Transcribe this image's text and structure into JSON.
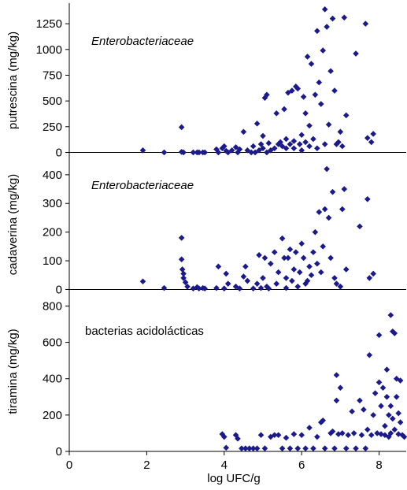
{
  "chart_data": {
    "type": "scatter",
    "marker_color": "#1a1a8c",
    "xlabel": "log UFC/g",
    "xlim": [
      0,
      8.7
    ],
    "xticks": [
      0,
      2,
      4,
      6,
      8
    ],
    "panels": [
      {
        "ylabel": "putrescina (mg/kg)",
        "annotation": "Enterobacteriaceae",
        "annotation_italic": true,
        "ylim": [
          -50,
          1450
        ],
        "yticks": [
          0,
          250,
          500,
          750,
          1000,
          1250
        ],
        "points": [
          [
            1.9,
            20
          ],
          [
            2.45,
            0
          ],
          [
            2.9,
            245
          ],
          [
            2.9,
            5
          ],
          [
            2.95,
            0
          ],
          [
            3.2,
            0
          ],
          [
            3.3,
            0
          ],
          [
            3.35,
            0
          ],
          [
            3.45,
            0
          ],
          [
            3.5,
            0
          ],
          [
            3.8,
            30
          ],
          [
            3.85,
            0
          ],
          [
            3.95,
            40
          ],
          [
            4.0,
            60
          ],
          [
            4.05,
            15
          ],
          [
            4.1,
            0
          ],
          [
            4.2,
            20
          ],
          [
            4.3,
            50
          ],
          [
            4.35,
            0
          ],
          [
            4.4,
            30
          ],
          [
            4.5,
            200
          ],
          [
            4.6,
            20
          ],
          [
            4.7,
            0
          ],
          [
            4.75,
            60
          ],
          [
            4.8,
            0
          ],
          [
            4.85,
            280
          ],
          [
            4.9,
            20
          ],
          [
            4.95,
            80
          ],
          [
            5.0,
            160
          ],
          [
            5.0,
            40
          ],
          [
            5.05,
            530
          ],
          [
            5.1,
            560
          ],
          [
            5.1,
            0
          ],
          [
            5.15,
            90
          ],
          [
            5.2,
            20
          ],
          [
            5.3,
            40
          ],
          [
            5.35,
            380
          ],
          [
            5.4,
            80
          ],
          [
            5.45,
            100
          ],
          [
            5.5,
            60
          ],
          [
            5.55,
            420
          ],
          [
            5.6,
            130
          ],
          [
            5.6,
            40
          ],
          [
            5.65,
            580
          ],
          [
            5.7,
            80
          ],
          [
            5.75,
            600
          ],
          [
            5.8,
            110
          ],
          [
            5.8,
            40
          ],
          [
            5.85,
            640
          ],
          [
            5.9,
            620
          ],
          [
            5.95,
            80
          ],
          [
            6.0,
            170
          ],
          [
            6.0,
            20
          ],
          [
            6.05,
            540
          ],
          [
            6.1,
            380
          ],
          [
            6.1,
            100
          ],
          [
            6.15,
            930
          ],
          [
            6.2,
            260
          ],
          [
            6.2,
            60
          ],
          [
            6.25,
            860
          ],
          [
            6.3,
            130
          ],
          [
            6.35,
            560
          ],
          [
            6.4,
            1180
          ],
          [
            6.4,
            40
          ],
          [
            6.45,
            680
          ],
          [
            6.5,
            470
          ],
          [
            6.55,
            990
          ],
          [
            6.6,
            1390
          ],
          [
            6.6,
            80
          ],
          [
            6.65,
            1220
          ],
          [
            6.7,
            270
          ],
          [
            6.75,
            790
          ],
          [
            6.8,
            1300
          ],
          [
            6.85,
            600
          ],
          [
            6.9,
            80
          ],
          [
            6.95,
            100
          ],
          [
            7.0,
            200
          ],
          [
            7.05,
            60
          ],
          [
            7.1,
            1310
          ],
          [
            7.15,
            360
          ],
          [
            7.4,
            960
          ],
          [
            7.65,
            1250
          ],
          [
            7.7,
            140
          ],
          [
            7.8,
            100
          ],
          [
            7.85,
            180
          ]
        ]
      },
      {
        "ylabel": "cadaverina (mg/kg)",
        "annotation": "Enterobacteriaceae",
        "annotation_italic": true,
        "ylim": [
          -7,
          460
        ],
        "yticks": [
          0,
          100,
          200,
          300,
          400
        ],
        "points": [
          [
            1.9,
            28
          ],
          [
            2.45,
            5
          ],
          [
            2.9,
            180
          ],
          [
            2.9,
            105
          ],
          [
            2.92,
            70
          ],
          [
            2.95,
            55
          ],
          [
            2.95,
            40
          ],
          [
            3.0,
            25
          ],
          [
            3.05,
            10
          ],
          [
            3.2,
            0
          ],
          [
            3.3,
            8
          ],
          [
            3.35,
            0
          ],
          [
            3.45,
            5
          ],
          [
            3.5,
            0
          ],
          [
            3.8,
            5
          ],
          [
            3.85,
            80
          ],
          [
            4.0,
            0
          ],
          [
            4.05,
            55
          ],
          [
            4.1,
            20
          ],
          [
            4.3,
            10
          ],
          [
            4.4,
            0
          ],
          [
            4.5,
            45
          ],
          [
            4.55,
            80
          ],
          [
            4.6,
            30
          ],
          [
            4.75,
            0
          ],
          [
            4.85,
            20
          ],
          [
            4.9,
            120
          ],
          [
            4.95,
            5
          ],
          [
            5.0,
            40
          ],
          [
            5.05,
            110
          ],
          [
            5.1,
            10
          ],
          [
            5.15,
            0
          ],
          [
            5.2,
            90
          ],
          [
            5.3,
            130
          ],
          [
            5.35,
            20
          ],
          [
            5.4,
            60
          ],
          [
            5.5,
            178
          ],
          [
            5.55,
            110
          ],
          [
            5.6,
            40
          ],
          [
            5.6,
            5
          ],
          [
            5.65,
            110
          ],
          [
            5.7,
            140
          ],
          [
            5.75,
            30
          ],
          [
            5.8,
            70
          ],
          [
            5.85,
            130
          ],
          [
            5.9,
            10
          ],
          [
            5.95,
            60
          ],
          [
            6.0,
            160
          ],
          [
            6.05,
            110
          ],
          [
            6.1,
            20
          ],
          [
            6.15,
            30
          ],
          [
            6.2,
            80
          ],
          [
            6.25,
            50
          ],
          [
            6.3,
            130
          ],
          [
            6.35,
            200
          ],
          [
            6.4,
            90
          ],
          [
            6.45,
            270
          ],
          [
            6.5,
            60
          ],
          [
            6.55,
            150
          ],
          [
            6.6,
            280
          ],
          [
            6.65,
            420
          ],
          [
            6.7,
            250
          ],
          [
            6.75,
            110
          ],
          [
            6.8,
            340
          ],
          [
            6.85,
            40
          ],
          [
            6.9,
            20
          ],
          [
            7.0,
            10
          ],
          [
            7.05,
            280
          ],
          [
            7.1,
            350
          ],
          [
            7.15,
            70
          ],
          [
            7.5,
            220
          ],
          [
            7.7,
            315
          ],
          [
            7.75,
            40
          ],
          [
            7.85,
            55
          ]
        ]
      },
      {
        "ylabel": "tiramina (mg/kg)",
        "annotation": "bacterias acidolácticas",
        "annotation_italic": false,
        "ylim": [
          0,
          880
        ],
        "yticks": [
          0,
          200,
          400,
          600,
          800
        ],
        "points": [
          [
            3.95,
            95
          ],
          [
            4.0,
            80
          ],
          [
            4.05,
            20
          ],
          [
            4.3,
            90
          ],
          [
            4.35,
            70
          ],
          [
            4.45,
            10
          ],
          [
            4.55,
            10
          ],
          [
            4.65,
            10
          ],
          [
            4.75,
            10
          ],
          [
            4.85,
            10
          ],
          [
            4.95,
            90
          ],
          [
            5.05,
            10
          ],
          [
            5.2,
            80
          ],
          [
            5.3,
            90
          ],
          [
            5.4,
            90
          ],
          [
            5.5,
            10
          ],
          [
            5.6,
            75
          ],
          [
            5.7,
            10
          ],
          [
            5.8,
            95
          ],
          [
            5.9,
            10
          ],
          [
            6.0,
            90
          ],
          [
            6.1,
            10
          ],
          [
            6.2,
            130
          ],
          [
            6.3,
            10
          ],
          [
            6.4,
            80
          ],
          [
            6.5,
            160
          ],
          [
            6.55,
            170
          ],
          [
            6.6,
            10
          ],
          [
            6.75,
            100
          ],
          [
            6.8,
            110
          ],
          [
            6.85,
            10
          ],
          [
            6.9,
            420
          ],
          [
            6.9,
            280
          ],
          [
            6.95,
            95
          ],
          [
            7.0,
            350
          ],
          [
            7.05,
            100
          ],
          [
            7.15,
            10
          ],
          [
            7.2,
            90
          ],
          [
            7.3,
            220
          ],
          [
            7.35,
            100
          ],
          [
            7.4,
            10
          ],
          [
            7.5,
            280
          ],
          [
            7.55,
            90
          ],
          [
            7.6,
            230
          ],
          [
            7.65,
            10
          ],
          [
            7.7,
            120
          ],
          [
            7.75,
            530
          ],
          [
            7.8,
            90
          ],
          [
            7.85,
            200
          ],
          [
            7.9,
            320
          ],
          [
            7.95,
            100
          ],
          [
            8.0,
            640
          ],
          [
            8.0,
            380
          ],
          [
            8.05,
            250
          ],
          [
            8.05,
            95
          ],
          [
            8.1,
            350
          ],
          [
            8.15,
            140
          ],
          [
            8.15,
            90
          ],
          [
            8.2,
            450
          ],
          [
            8.2,
            300
          ],
          [
            8.25,
            200
          ],
          [
            8.25,
            80
          ],
          [
            8.3,
            750
          ],
          [
            8.3,
            250
          ],
          [
            8.3,
            100
          ],
          [
            8.35,
            660
          ],
          [
            8.35,
            180
          ],
          [
            8.4,
            650
          ],
          [
            8.4,
            120
          ],
          [
            8.45,
            400
          ],
          [
            8.45,
            300
          ],
          [
            8.5,
            210
          ],
          [
            8.5,
            95
          ],
          [
            8.55,
            390
          ],
          [
            8.55,
            160
          ],
          [
            8.6,
            90
          ],
          [
            8.65,
            80
          ]
        ]
      }
    ]
  }
}
